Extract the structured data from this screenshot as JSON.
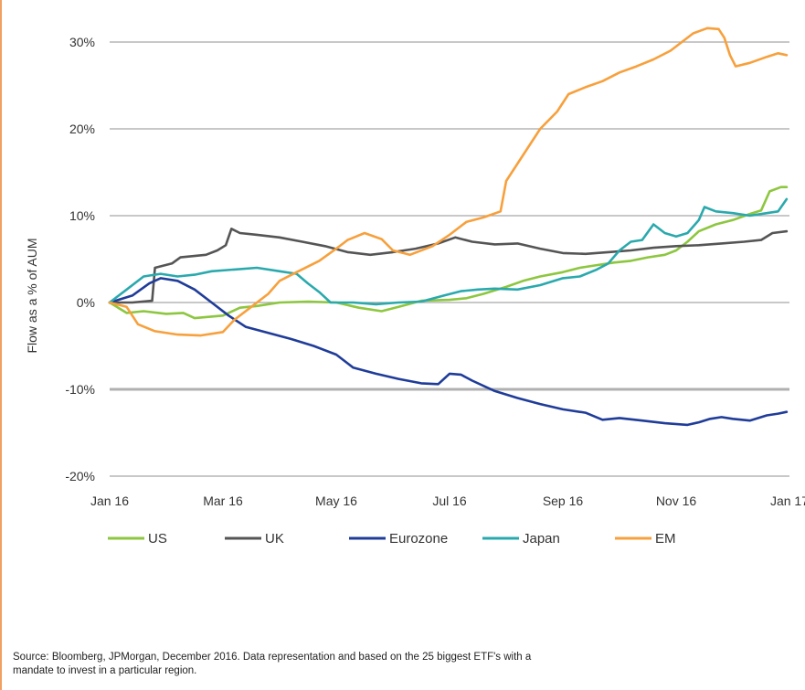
{
  "chart_data": {
    "type": "line",
    "ylabel": "Flow as a % of AUM",
    "xlabel": "",
    "ylim": [
      -20,
      30
    ],
    "xlim": [
      0,
      12
    ],
    "y_ticks": [
      {
        "value": 30,
        "label": "30%"
      },
      {
        "value": 20,
        "label": "20%"
      },
      {
        "value": 10,
        "label": "10%"
      },
      {
        "value": 0,
        "label": "0%"
      },
      {
        "value": -10,
        "label": "-10%"
      },
      {
        "value": -20,
        "label": "-20%"
      }
    ],
    "x_ticks": [
      {
        "value": 0,
        "label": "Jan 16"
      },
      {
        "value": 2,
        "label": "Mar 16"
      },
      {
        "value": 4,
        "label": "May 16"
      },
      {
        "value": 6,
        "label": "Jul 16"
      },
      {
        "value": 8,
        "label": "Sep 16"
      },
      {
        "value": 10,
        "label": "Nov 16"
      },
      {
        "value": 12,
        "label": "Jan 17"
      }
    ],
    "grid": "horizontal",
    "legend_position": "bottom",
    "series": [
      {
        "name": "US",
        "color": "#8dc63f",
        "points": [
          [
            0,
            0
          ],
          [
            0.3,
            -1.2
          ],
          [
            0.6,
            -1
          ],
          [
            1,
            -1.3
          ],
          [
            1.3,
            -1.2
          ],
          [
            1.5,
            -1.8
          ],
          [
            2,
            -1.5
          ],
          [
            2.3,
            -0.6
          ],
          [
            2.6,
            -0.4
          ],
          [
            3,
            0
          ],
          [
            3.5,
            0.1
          ],
          [
            4,
            0
          ],
          [
            4.4,
            -0.6
          ],
          [
            4.8,
            -1
          ],
          [
            5.1,
            -0.5
          ],
          [
            5.5,
            0.2
          ],
          [
            6,
            0.3
          ],
          [
            6.3,
            0.5
          ],
          [
            6.6,
            1
          ],
          [
            7,
            1.8
          ],
          [
            7.3,
            2.5
          ],
          [
            7.6,
            3
          ],
          [
            8,
            3.5
          ],
          [
            8.3,
            4
          ],
          [
            8.6,
            4.3
          ],
          [
            8.9,
            4.6
          ],
          [
            9.2,
            4.8
          ],
          [
            9.5,
            5.2
          ],
          [
            9.8,
            5.5
          ],
          [
            10,
            6
          ],
          [
            10.2,
            7
          ],
          [
            10.4,
            8.2
          ],
          [
            10.7,
            9
          ],
          [
            11,
            9.5
          ],
          [
            11.3,
            10.2
          ],
          [
            11.5,
            10.6
          ],
          [
            11.65,
            12.8
          ],
          [
            11.85,
            13.3
          ],
          [
            11.95,
            13.3
          ]
        ]
      },
      {
        "name": "UK",
        "color": "#555555",
        "points": [
          [
            0,
            0
          ],
          [
            0.4,
            0
          ],
          [
            0.75,
            0.2
          ],
          [
            0.8,
            4
          ],
          [
            1.1,
            4.5
          ],
          [
            1.25,
            5.2
          ],
          [
            1.7,
            5.5
          ],
          [
            1.9,
            6
          ],
          [
            2.05,
            6.6
          ],
          [
            2.15,
            8.5
          ],
          [
            2.3,
            8
          ],
          [
            2.6,
            7.8
          ],
          [
            3,
            7.5
          ],
          [
            3.4,
            7
          ],
          [
            3.8,
            6.5
          ],
          [
            4.2,
            5.8
          ],
          [
            4.6,
            5.5
          ],
          [
            5,
            5.8
          ],
          [
            5.4,
            6.2
          ],
          [
            5.8,
            6.8
          ],
          [
            6.1,
            7.5
          ],
          [
            6.4,
            7
          ],
          [
            6.8,
            6.7
          ],
          [
            7.2,
            6.8
          ],
          [
            7.6,
            6.2
          ],
          [
            8,
            5.7
          ],
          [
            8.4,
            5.6
          ],
          [
            8.8,
            5.8
          ],
          [
            9.2,
            6
          ],
          [
            9.6,
            6.3
          ],
          [
            10,
            6.5
          ],
          [
            10.4,
            6.6
          ],
          [
            10.8,
            6.8
          ],
          [
            11.2,
            7
          ],
          [
            11.5,
            7.2
          ],
          [
            11.7,
            8
          ],
          [
            11.95,
            8.2
          ]
        ]
      },
      {
        "name": "Eurozone",
        "color": "#1f3c99",
        "points": [
          [
            0,
            0
          ],
          [
            0.4,
            0.8
          ],
          [
            0.7,
            2.2
          ],
          [
            0.9,
            2.8
          ],
          [
            1.2,
            2.5
          ],
          [
            1.5,
            1.5
          ],
          [
            1.8,
            0
          ],
          [
            2.1,
            -1.5
          ],
          [
            2.4,
            -2.8
          ],
          [
            2.8,
            -3.5
          ],
          [
            3.2,
            -4.2
          ],
          [
            3.6,
            -5
          ],
          [
            4,
            -6
          ],
          [
            4.3,
            -7.5
          ],
          [
            4.7,
            -8.2
          ],
          [
            5.1,
            -8.8
          ],
          [
            5.5,
            -9.3
          ],
          [
            5.8,
            -9.4
          ],
          [
            6,
            -8.2
          ],
          [
            6.2,
            -8.3
          ],
          [
            6.4,
            -9
          ],
          [
            6.8,
            -10.2
          ],
          [
            7.2,
            -11
          ],
          [
            7.6,
            -11.7
          ],
          [
            8,
            -12.3
          ],
          [
            8.4,
            -12.7
          ],
          [
            8.7,
            -13.5
          ],
          [
            9,
            -13.3
          ],
          [
            9.4,
            -13.6
          ],
          [
            9.8,
            -13.9
          ],
          [
            10.2,
            -14.1
          ],
          [
            10.4,
            -13.8
          ],
          [
            10.6,
            -13.4
          ],
          [
            10.8,
            -13.2
          ],
          [
            11,
            -13.4
          ],
          [
            11.3,
            -13.6
          ],
          [
            11.6,
            -13
          ],
          [
            11.8,
            -12.8
          ],
          [
            11.95,
            -12.6
          ]
        ]
      },
      {
        "name": "Japan",
        "color": "#2aa9ad",
        "points": [
          [
            0,
            0
          ],
          [
            0.3,
            1.5
          ],
          [
            0.6,
            3
          ],
          [
            0.9,
            3.3
          ],
          [
            1.2,
            3
          ],
          [
            1.5,
            3.2
          ],
          [
            1.8,
            3.6
          ],
          [
            2.2,
            3.8
          ],
          [
            2.6,
            4
          ],
          [
            3,
            3.6
          ],
          [
            3.3,
            3.3
          ],
          [
            3.5,
            2.2
          ],
          [
            3.7,
            1.2
          ],
          [
            3.9,
            0
          ],
          [
            4.3,
            0
          ],
          [
            4.7,
            -0.2
          ],
          [
            5.1,
            0
          ],
          [
            5.5,
            0.1
          ],
          [
            5.9,
            0.8
          ],
          [
            6.2,
            1.3
          ],
          [
            6.5,
            1.5
          ],
          [
            6.8,
            1.6
          ],
          [
            7.2,
            1.5
          ],
          [
            7.6,
            2
          ],
          [
            8,
            2.8
          ],
          [
            8.3,
            3
          ],
          [
            8.6,
            3.8
          ],
          [
            8.8,
            4.5
          ],
          [
            9,
            6
          ],
          [
            9.2,
            7
          ],
          [
            9.4,
            7.2
          ],
          [
            9.6,
            9
          ],
          [
            9.8,
            8
          ],
          [
            10,
            7.6
          ],
          [
            10.2,
            8
          ],
          [
            10.4,
            9.5
          ],
          [
            10.5,
            11
          ],
          [
            10.7,
            10.5
          ],
          [
            11,
            10.3
          ],
          [
            11.3,
            10
          ],
          [
            11.6,
            10.3
          ],
          [
            11.8,
            10.5
          ],
          [
            11.95,
            11.9
          ]
        ]
      },
      {
        "name": "EM",
        "color": "#f7a03c",
        "points": [
          [
            0,
            0
          ],
          [
            0.3,
            -0.5
          ],
          [
            0.5,
            -2.5
          ],
          [
            0.8,
            -3.3
          ],
          [
            1.2,
            -3.7
          ],
          [
            1.6,
            -3.8
          ],
          [
            2,
            -3.4
          ],
          [
            2.2,
            -2
          ],
          [
            2.5,
            -0.5
          ],
          [
            2.8,
            1
          ],
          [
            3,
            2.5
          ],
          [
            3.3,
            3.5
          ],
          [
            3.7,
            4.8
          ],
          [
            4,
            6.2
          ],
          [
            4.2,
            7.2
          ],
          [
            4.5,
            8
          ],
          [
            4.8,
            7.3
          ],
          [
            5,
            6
          ],
          [
            5.3,
            5.5
          ],
          [
            5.7,
            6.5
          ],
          [
            6,
            7.8
          ],
          [
            6.3,
            9.3
          ],
          [
            6.6,
            9.8
          ],
          [
            6.9,
            10.5
          ],
          [
            7,
            14
          ],
          [
            7.3,
            17
          ],
          [
            7.6,
            20
          ],
          [
            7.9,
            22
          ],
          [
            8.1,
            24
          ],
          [
            8.4,
            24.8
          ],
          [
            8.7,
            25.5
          ],
          [
            9,
            26.5
          ],
          [
            9.3,
            27.2
          ],
          [
            9.6,
            28
          ],
          [
            9.9,
            29
          ],
          [
            10.1,
            30
          ],
          [
            10.3,
            31
          ],
          [
            10.55,
            31.6
          ],
          [
            10.75,
            31.5
          ],
          [
            10.85,
            30.5
          ],
          [
            10.95,
            28.5
          ],
          [
            11.05,
            27.2
          ],
          [
            11.3,
            27.6
          ],
          [
            11.6,
            28.3
          ],
          [
            11.8,
            28.7
          ],
          [
            11.95,
            28.5
          ]
        ]
      }
    ]
  },
  "source": {
    "line1": "Source: Bloomberg, JPMorgan,  December 2016. Data representation and based on the 25 biggest ETF's  with a",
    "line2": "mandate to invest in a particular region."
  }
}
